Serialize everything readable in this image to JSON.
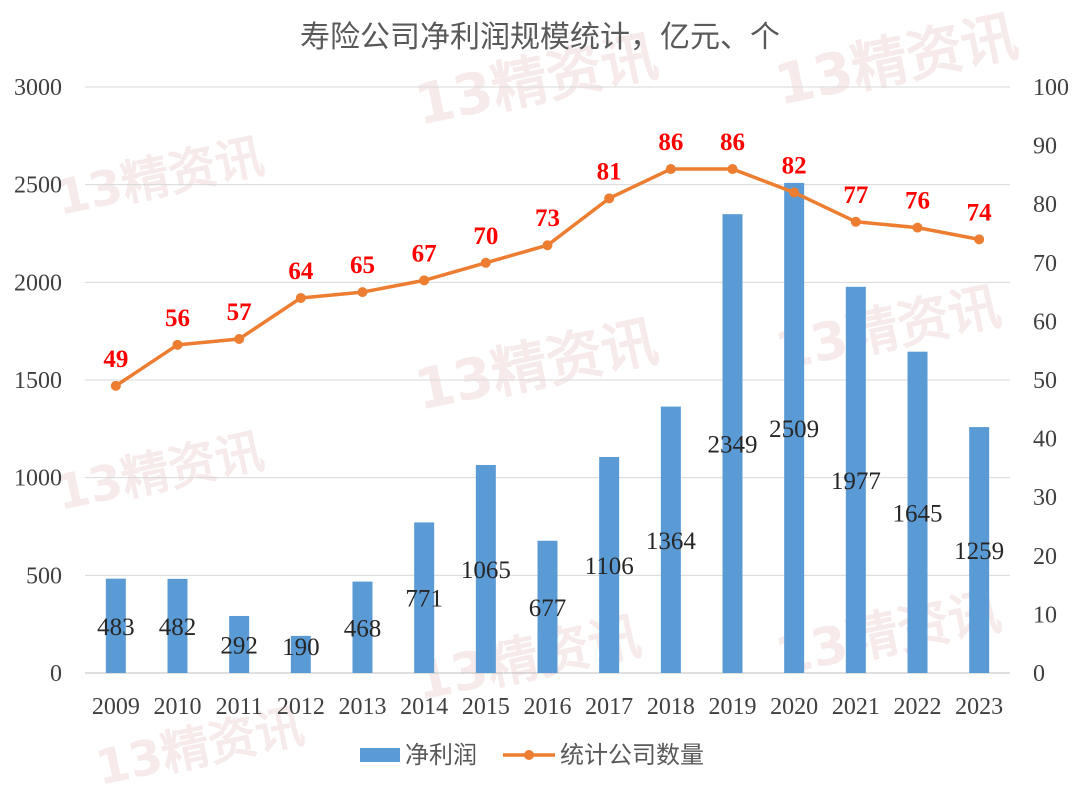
{
  "chart_data": {
    "type": "bar",
    "title": "寿险公司净利润规模统计，亿元、个",
    "categories": [
      "2009",
      "2010",
      "2011",
      "2012",
      "2013",
      "2014",
      "2015",
      "2016",
      "2017",
      "2018",
      "2019",
      "2020",
      "2021",
      "2022",
      "2023"
    ],
    "series": [
      {
        "name": "净利润",
        "type": "bar",
        "axis": "left",
        "color": "#5b9bd5",
        "values": [
          483,
          482,
          292,
          190,
          468,
          771,
          1065,
          677,
          1106,
          1364,
          2349,
          2509,
          1977,
          1645,
          1259
        ]
      },
      {
        "name": "统计公司数量",
        "type": "line",
        "axis": "right",
        "color": "#ed7d31",
        "label_color": "#ff0000",
        "values": [
          49,
          56,
          57,
          64,
          65,
          67,
          70,
          73,
          81,
          86,
          86,
          82,
          77,
          76,
          74
        ]
      }
    ],
    "y_left": {
      "min": 0,
      "max": 3000,
      "ticks": [
        "0",
        "500",
        "1000",
        "1500",
        "2000",
        "2500",
        "3000"
      ]
    },
    "y_right": {
      "min": 0,
      "max": 100,
      "ticks": [
        "0",
        "10",
        "20",
        "30",
        "40",
        "50",
        "60",
        "70",
        "80",
        "90",
        "100"
      ]
    },
    "grid": true,
    "legend": "bottom",
    "watermark": "13精资讯"
  }
}
